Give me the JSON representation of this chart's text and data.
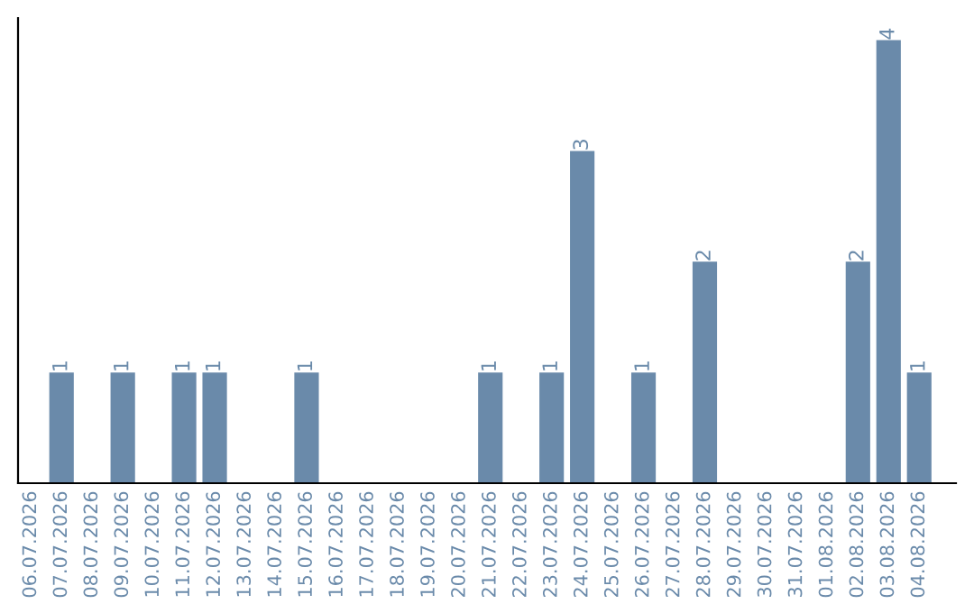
{
  "chart_data": {
    "type": "bar",
    "categories": [
      "06.07.2026",
      "07.07.2026",
      "08.07.2026",
      "09.07.2026",
      "10.07.2026",
      "11.07.2026",
      "12.07.2026",
      "13.07.2026",
      "14.07.2026",
      "15.07.2026",
      "16.07.2026",
      "17.07.2026",
      "18.07.2026",
      "19.07.2026",
      "20.07.2026",
      "21.07.2026",
      "22.07.2026",
      "23.07.2026",
      "24.07.2026",
      "25.07.2026",
      "26.07.2026",
      "27.07.2026",
      "28.07.2026",
      "29.07.2026",
      "30.07.2026",
      "31.07.2026",
      "01.08.2026",
      "02.08.2026",
      "03.08.2026",
      "04.08.2026"
    ],
    "values": [
      0,
      1,
      0,
      1,
      0,
      1,
      1,
      0,
      0,
      1,
      0,
      0,
      0,
      0,
      0,
      1,
      0,
      1,
      3,
      0,
      1,
      0,
      2,
      0,
      0,
      0,
      0,
      2,
      4,
      1
    ],
    "value_labels": [
      null,
      "1",
      null,
      "1",
      null,
      "1",
      "1",
      null,
      null,
      "1",
      null,
      null,
      null,
      null,
      null,
      "1",
      null,
      "1",
      "3",
      null,
      "1",
      null,
      "2",
      null,
      null,
      null,
      null,
      "2",
      "4",
      "1"
    ],
    "color": "#6a8aaa",
    "tick_labels": "x",
    "grid": false,
    "legend": false
  }
}
